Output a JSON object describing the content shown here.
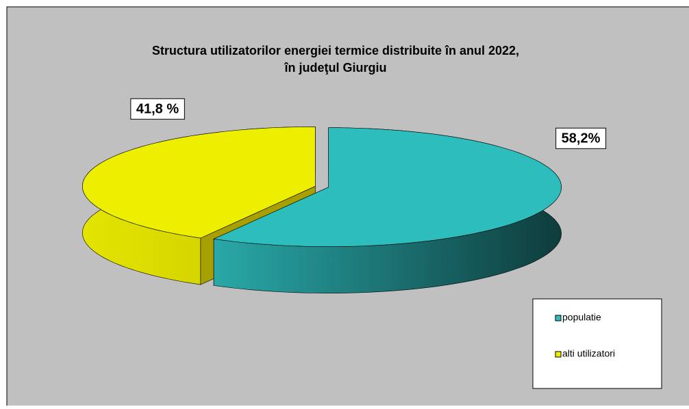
{
  "chart_data": {
    "type": "pie3d",
    "title": [
      "Structura utilizatorilor energiei termice distribuite în anul 2022,",
      "în judeţul Giurgiu"
    ],
    "categories": [
      "populatie",
      "alti utilizatori"
    ],
    "values": [
      58.2,
      41.8
    ],
    "value_labels": [
      "58,2%",
      "41,8 %"
    ],
    "colors": [
      "#2dbdbd",
      "#eeee00"
    ],
    "legend": "bottom-right"
  }
}
